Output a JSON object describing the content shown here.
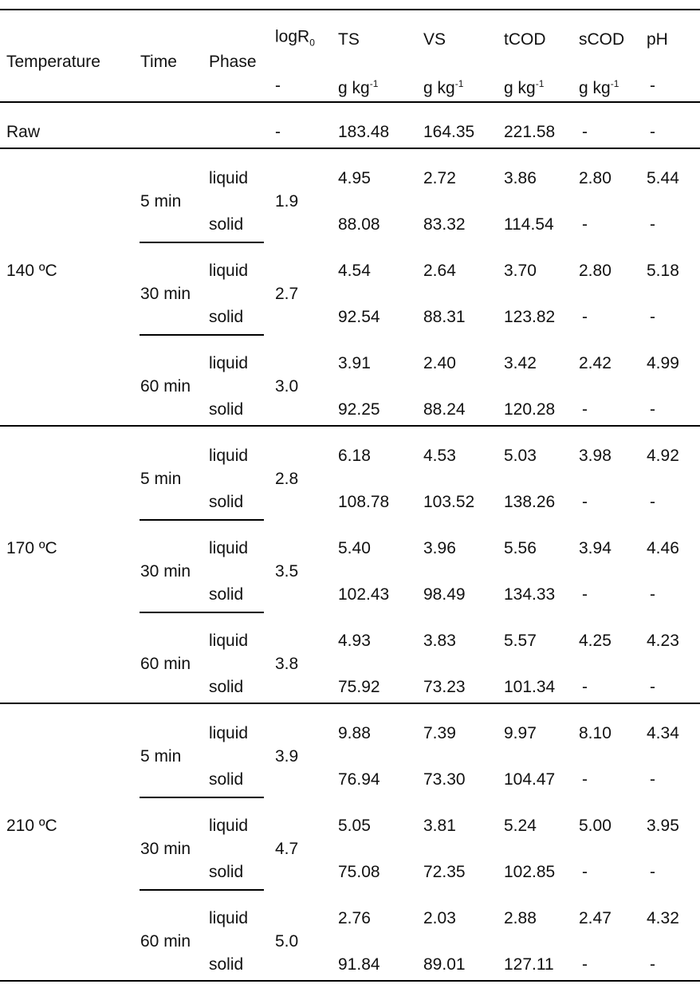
{
  "table": {
    "header": {
      "temperature": "Temperature",
      "time": "Time",
      "phase": "Phase",
      "logR": {
        "name": "logR",
        "sub": "0",
        "unit": "-"
      },
      "measures": [
        {
          "name": "TS",
          "unit": "g kg",
          "sup": "-1"
        },
        {
          "name": "VS",
          "unit": "g kg",
          "sup": "-1"
        },
        {
          "name": "tCOD",
          "unit": "g kg",
          "sup": "-1"
        },
        {
          "name": "sCOD",
          "unit": "g kg",
          "sup": "-1"
        },
        {
          "name": "pH",
          "unit": "-"
        }
      ]
    },
    "raw": {
      "label": "Raw",
      "logR0": "-",
      "cells": [
        "183.48",
        "164.35",
        "221.58",
        "-",
        "-"
      ]
    },
    "groups": [
      {
        "temperature": "140 ºC",
        "times": [
          {
            "time": "5 min",
            "logR0": "1.9",
            "rows": [
              {
                "phase": "liquid",
                "cells": [
                  "4.95",
                  "2.72",
                  "3.86",
                  "2.80",
                  "5.44"
                ]
              },
              {
                "phase": "solid",
                "cells": [
                  "88.08",
                  "83.32",
                  "114.54",
                  "-",
                  "-"
                ]
              }
            ]
          },
          {
            "time": "30 min",
            "logR0": "2.7",
            "rows": [
              {
                "phase": "liquid",
                "cells": [
                  "4.54",
                  "2.64",
                  "3.70",
                  "2.80",
                  "5.18"
                ]
              },
              {
                "phase": "solid",
                "cells": [
                  "92.54",
                  "88.31",
                  "123.82",
                  "-",
                  "-"
                ]
              }
            ]
          },
          {
            "time": "60 min",
            "logR0": "3.0",
            "rows": [
              {
                "phase": "liquid",
                "cells": [
                  "3.91",
                  "2.40",
                  "3.42",
                  "2.42",
                  "4.99"
                ]
              },
              {
                "phase": "solid",
                "cells": [
                  "92.25",
                  "88.24",
                  "120.28",
                  "-",
                  "-"
                ]
              }
            ]
          }
        ]
      },
      {
        "temperature": "170 ºC",
        "times": [
          {
            "time": "5 min",
            "logR0": "2.8",
            "rows": [
              {
                "phase": "liquid",
                "cells": [
                  "6.18",
                  "4.53",
                  "5.03",
                  "3.98",
                  "4.92"
                ]
              },
              {
                "phase": "solid",
                "cells": [
                  "108.78",
                  "103.52",
                  "138.26",
                  "-",
                  "-"
                ]
              }
            ]
          },
          {
            "time": "30 min",
            "logR0": "3.5",
            "rows": [
              {
                "phase": "liquid",
                "cells": [
                  "5.40",
                  "3.96",
                  "5.56",
                  "3.94",
                  "4.46"
                ]
              },
              {
                "phase": "solid",
                "cells": [
                  "102.43",
                  "98.49",
                  "134.33",
                  "-",
                  "-"
                ]
              }
            ]
          },
          {
            "time": "60 min",
            "logR0": "3.8",
            "rows": [
              {
                "phase": "liquid",
                "cells": [
                  "4.93",
                  "3.83",
                  "5.57",
                  "4.25",
                  "4.23"
                ]
              },
              {
                "phase": "solid",
                "cells": [
                  "75.92",
                  "73.23",
                  "101.34",
                  "-",
                  "-"
                ]
              }
            ]
          }
        ]
      },
      {
        "temperature": "210 ºC",
        "times": [
          {
            "time": "5 min",
            "logR0": "3.9",
            "rows": [
              {
                "phase": "liquid",
                "cells": [
                  "9.88",
                  "7.39",
                  "9.97",
                  "8.10",
                  "4.34"
                ]
              },
              {
                "phase": "solid",
                "cells": [
                  "76.94",
                  "73.30",
                  "104.47",
                  "-",
                  "-"
                ]
              }
            ]
          },
          {
            "time": "30 min",
            "logR0": "4.7",
            "rows": [
              {
                "phase": "liquid",
                "cells": [
                  "5.05",
                  "3.81",
                  "5.24",
                  "5.00",
                  "3.95"
                ]
              },
              {
                "phase": "solid",
                "cells": [
                  "75.08",
                  "72.35",
                  "102.85",
                  "-",
                  "-"
                ]
              }
            ]
          },
          {
            "time": "60 min",
            "logR0": "5.0",
            "rows": [
              {
                "phase": "liquid",
                "cells": [
                  "2.76",
                  "2.03",
                  "2.88",
                  "2.47",
                  "4.32"
                ]
              },
              {
                "phase": "solid",
                "cells": [
                  "91.84",
                  "89.01",
                  "127.11",
                  "-",
                  "-"
                ]
              }
            ]
          }
        ]
      }
    ]
  }
}
